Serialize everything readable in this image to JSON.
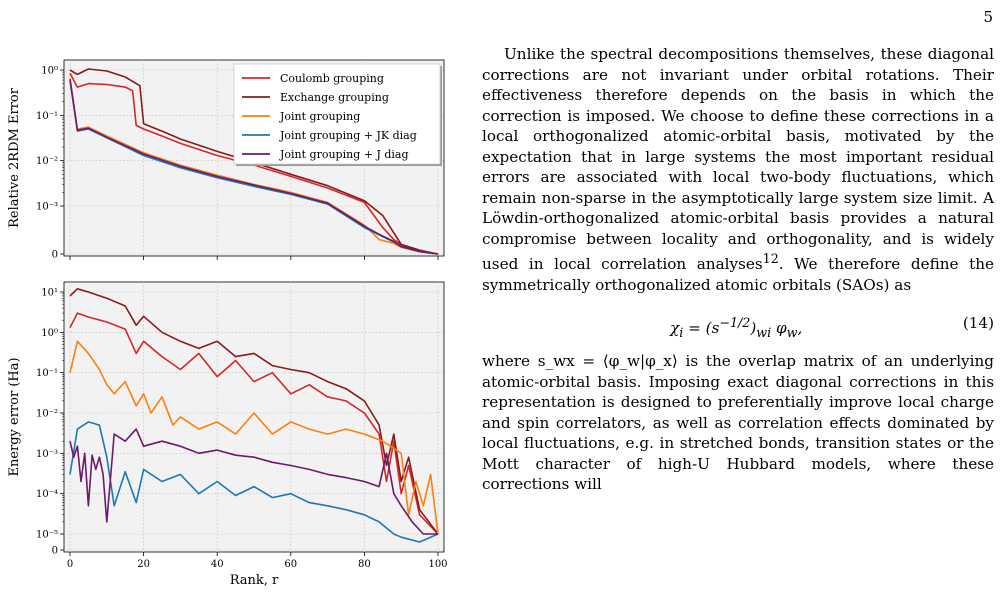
{
  "page_number": "5",
  "text": {
    "paragraph1": "Unlike the spectral decompositions themselves, these diagonal corrections are not invariant under orbital rotations. Their effectiveness therefore depends on the basis in which the correction is imposed. We choose to define these corrections in a local orthogonalized atomic-orbital basis, motivated by the expectation that in large systems the most important residual errors are associated with local two-body fluctuations, which remain non-sparse in the asymptotically large system size limit. A Löwdin-orthogonalized atomic-orbital basis provides a natural compromise between locality and orthogonality, and is widely used in local correlation analyses",
    "citation": "12",
    "paragraph1_end": ". We therefore define the symmetrically orthogonalized atomic orbitals (SAOs) as",
    "equation_number": "(14)",
    "paragraph2": "where s_wx = ⟨φ_w|φ_x⟩ is the overlap matrix of an underlying atomic-orbital basis. Imposing exact diagonal corrections in this representation is designed to preferentially improve local charge and spin correlators, as well as correlation effects dominated by local fluctuations, e.g. in stretched bonds, transition states or the Mott character of high-U Hubbard models, where these corrections will"
  },
  "chart_data": [
    {
      "type": "line",
      "ylabel": "Relative 2RDM Error",
      "yscale": "symlog",
      "yticks": [
        "10⁰",
        "10⁻¹",
        "10⁻²",
        "10⁻³",
        "0"
      ],
      "xlim": [
        0,
        100
      ],
      "grid": true,
      "legend_position": "top-right",
      "series": [
        {
          "name": "Coulomb grouping",
          "color": "#d62728",
          "x": [
            0,
            2,
            5,
            10,
            15,
            17,
            18,
            20,
            25,
            30,
            40,
            50,
            60,
            70,
            80,
            85,
            88,
            90,
            95,
            100
          ],
          "y": [
            0.85,
            0.42,
            0.5,
            0.48,
            0.42,
            0.35,
            0.06,
            0.05,
            0.035,
            0.024,
            0.013,
            0.008,
            0.0045,
            0.0025,
            0.0012,
            0.00055,
            0.0003,
            0.0002,
            5e-05,
            0.0
          ]
        },
        {
          "name": "Exchange grouping",
          "color": "#8b1a1a",
          "x": [
            0,
            2,
            5,
            10,
            15,
            19,
            20,
            25,
            30,
            40,
            50,
            60,
            70,
            80,
            85,
            90,
            95,
            100
          ],
          "y": [
            1.0,
            0.8,
            1.05,
            0.95,
            0.7,
            0.45,
            0.065,
            0.045,
            0.03,
            0.016,
            0.009,
            0.005,
            0.0028,
            0.0013,
            0.0008,
            0.0002,
            8e-05,
            0.0
          ]
        },
        {
          "name": "Joint grouping",
          "color": "#ff7f0e",
          "x": [
            0,
            2,
            5,
            10,
            20,
            30,
            40,
            50,
            60,
            70,
            80,
            84,
            88,
            90,
            95,
            100
          ],
          "y": [
            0.65,
            0.05,
            0.055,
            0.035,
            0.015,
            0.008,
            0.0048,
            0.003,
            0.002,
            0.0012,
            0.0006,
            0.0003,
            0.00022,
            0.00014,
            5e-05,
            0.0
          ]
        },
        {
          "name": "Joint grouping + JK diag",
          "color": "#1f77b4",
          "x": [
            0,
            2,
            5,
            10,
            20,
            30,
            40,
            50,
            60,
            70,
            80,
            84,
            88,
            90,
            95,
            100
          ],
          "y": [
            0.6,
            0.045,
            0.05,
            0.032,
            0.013,
            0.007,
            0.0042,
            0.0027,
            0.0018,
            0.0011,
            0.00055,
            0.0004,
            0.00025,
            0.00015,
            5e-05,
            0.0
          ]
        },
        {
          "name": "Joint grouping + J diag",
          "color": "#6a1b6a",
          "x": [
            0,
            2,
            5,
            10,
            20,
            30,
            40,
            50,
            60,
            70,
            80,
            84,
            88,
            90,
            95,
            100
          ],
          "y": [
            0.62,
            0.047,
            0.052,
            0.033,
            0.014,
            0.0075,
            0.0045,
            0.0029,
            0.0019,
            0.00115,
            0.00058,
            0.00041,
            0.00026,
            0.00016,
            5e-05,
            0.0
          ]
        }
      ]
    },
    {
      "type": "line",
      "ylabel": "Energy error (Ha)",
      "xlabel": "Rank, r",
      "yscale": "symlog",
      "yticks": [
        "10¹",
        "10⁰",
        "10⁻¹",
        "10⁻²",
        "10⁻³",
        "10⁻⁴",
        "10⁻⁵",
        "0"
      ],
      "xticks": [
        "0",
        "20",
        "40",
        "60",
        "80",
        "100"
      ],
      "xlim": [
        0,
        100
      ],
      "grid": true,
      "series": [
        {
          "name": "Coulomb grouping",
          "color": "#d62728",
          "x": [
            0,
            2,
            5,
            10,
            15,
            18,
            20,
            25,
            30,
            35,
            40,
            45,
            50,
            55,
            60,
            65,
            70,
            75,
            80,
            84,
            86,
            88,
            90,
            92,
            95,
            100
          ],
          "y": [
            1.3,
            3.0,
            2.4,
            1.8,
            1.2,
            0.3,
            0.6,
            0.25,
            0.12,
            0.3,
            0.08,
            0.2,
            0.06,
            0.1,
            0.03,
            0.05,
            0.025,
            0.02,
            0.01,
            0.003,
            0.0002,
            0.002,
            0.0001,
            0.0005,
            3e-05,
            1e-05
          ]
        },
        {
          "name": "Exchange grouping",
          "color": "#8b1a1a",
          "x": [
            0,
            2,
            5,
            10,
            15,
            18,
            20,
            25,
            30,
            35,
            40,
            45,
            50,
            55,
            60,
            65,
            70,
            75,
            80,
            84,
            86,
            88,
            90,
            92,
            95,
            100
          ],
          "y": [
            8.0,
            12.0,
            10.0,
            7.0,
            4.5,
            1.5,
            2.5,
            1.0,
            0.6,
            0.4,
            0.6,
            0.25,
            0.3,
            0.15,
            0.12,
            0.1,
            0.06,
            0.04,
            0.02,
            0.005,
            0.0005,
            0.003,
            0.0002,
            0.0008,
            4e-05,
            1e-05
          ]
        },
        {
          "name": "Joint grouping",
          "color": "#ff7f0e",
          "x": [
            0,
            2,
            5,
            8,
            10,
            12,
            15,
            18,
            20,
            22,
            25,
            28,
            30,
            35,
            40,
            45,
            50,
            55,
            60,
            65,
            70,
            75,
            80,
            85,
            90,
            92,
            94,
            96,
            98,
            100
          ],
          "y": [
            0.1,
            0.6,
            0.3,
            0.12,
            0.05,
            0.03,
            0.06,
            0.015,
            0.03,
            0.01,
            0.025,
            0.005,
            0.008,
            0.004,
            0.006,
            0.003,
            0.01,
            0.003,
            0.006,
            0.004,
            0.003,
            0.004,
            0.003,
            0.002,
            0.001,
            3e-05,
            0.0002,
            5e-05,
            0.0003,
            1e-05
          ]
        },
        {
          "name": "Joint grouping + JK diag",
          "color": "#1f77b4",
          "x": [
            0,
            2,
            5,
            8,
            10,
            12,
            15,
            18,
            20,
            25,
            30,
            35,
            40,
            45,
            50,
            55,
            60,
            65,
            70,
            75,
            80,
            84,
            88,
            90,
            95,
            100
          ],
          "y": [
            0.0003,
            0.004,
            0.006,
            0.005,
            0.0008,
            5e-05,
            0.00035,
            6e-05,
            0.0004,
            0.0002,
            0.0003,
            0.0001,
            0.0002,
            9e-05,
            0.00015,
            8e-05,
            0.0001,
            6e-05,
            5e-05,
            4e-05,
            3e-05,
            2e-05,
            1e-05,
            8e-06,
            5e-06,
            1e-05
          ]
        },
        {
          "name": "Joint grouping + J diag",
          "color": "#6a1b6a",
          "x": [
            0,
            1,
            2,
            3,
            4,
            5,
            6,
            7,
            8,
            9,
            10,
            12,
            15,
            18,
            20,
            25,
            30,
            35,
            40,
            45,
            50,
            55,
            60,
            65,
            70,
            75,
            80,
            84,
            86,
            88,
            90,
            93,
            96,
            100
          ],
          "y": [
            0.002,
            0.0008,
            0.0015,
            0.0002,
            0.001,
            5e-05,
            0.0009,
            0.0004,
            0.0008,
            0.0003,
            2e-05,
            0.003,
            0.002,
            0.004,
            0.0015,
            0.002,
            0.0015,
            0.001,
            0.0012,
            0.0009,
            0.0008,
            0.0006,
            0.0005,
            0.0004,
            0.0003,
            0.00025,
            0.0002,
            0.00015,
            0.001,
            0.0001,
            5e-05,
            2e-05,
            1e-05,
            1e-05
          ]
        }
      ]
    }
  ]
}
